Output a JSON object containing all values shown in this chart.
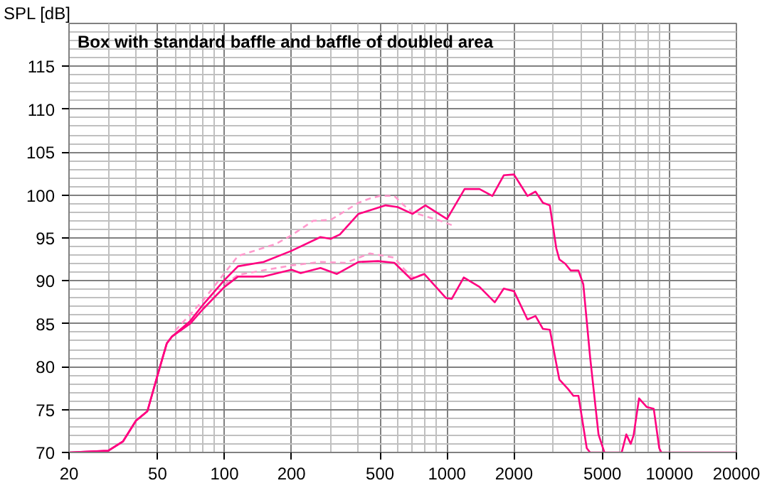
{
  "chart_data": {
    "type": "line",
    "title": "Box with standard baffle and baffle of doubled area",
    "ylabel": "SPL [dB]",
    "log": "x",
    "grid": true,
    "xlim": [
      20,
      20000
    ],
    "ylim": [
      70,
      120
    ],
    "xticks": [
      20,
      50,
      100,
      200,
      500,
      1000,
      2000,
      5000,
      10000,
      20000
    ],
    "yticks": [
      70,
      75,
      80,
      85,
      90,
      95,
      100,
      105,
      110,
      115
    ],
    "series": [
      {
        "color": "#ff99cc",
        "line_style": "dashed",
        "x": [
          60,
          80,
          100,
          115,
          170,
          200,
          250,
          300,
          400,
          450,
          500,
          580,
          640,
          700,
          930,
          1050
        ],
        "values": [
          84.2,
          87.7,
          90.9,
          92.9,
          94.3,
          95.3,
          97.0,
          97.1,
          99.1,
          99.6,
          99.9,
          99.9,
          98.8,
          98.0,
          97.0,
          96.5
        ]
      },
      {
        "color": "#ff99cc",
        "line_style": "dashed",
        "x": [
          100,
          115,
          200,
          270,
          350,
          450,
          500,
          580,
          640,
          700,
          800
        ],
        "values": [
          89.6,
          90.7,
          91.8,
          92.2,
          92.1,
          93.2,
          93.0,
          92.7,
          91.4,
          90.4,
          90.8
        ]
      },
      {
        "color": "#ff0080",
        "line_style": "solid",
        "x": [
          20,
          30,
          35,
          40,
          45,
          50,
          55,
          58,
          70,
          80,
          100,
          115,
          150,
          200,
          270,
          300,
          330,
          400,
          530,
          600,
          700,
          800,
          1000,
          1200,
          1400,
          1600,
          1800,
          2000,
          2300,
          2500,
          2700,
          2900,
          3100,
          3200,
          3400,
          3600,
          3900,
          4100,
          4400,
          4800,
          5100
        ],
        "values": [
          70,
          70.2,
          71.3,
          73.7,
          74.8,
          79.0,
          82.7,
          83.5,
          85.3,
          87.2,
          90.1,
          91.7,
          92.2,
          93.5,
          95.1,
          94.9,
          95.4,
          97.8,
          98.8,
          98.6,
          97.8,
          98.8,
          97.2,
          100.7,
          100.7,
          99.9,
          102.3,
          102.4,
          99.9,
          100.4,
          99.1,
          98.8,
          93.8,
          92.5,
          92.0,
          91.2,
          91.2,
          89.6,
          81.1,
          72.1,
          70
        ]
      },
      {
        "color": "#ff0080",
        "line_style": "solid",
        "x": [
          20,
          30,
          35,
          40,
          45,
          50,
          55,
          58,
          70,
          80,
          100,
          115,
          150,
          200,
          220,
          270,
          320,
          400,
          490,
          580,
          690,
          790,
          990,
          1050,
          1190,
          1400,
          1640,
          1800,
          2000,
          2300,
          2500,
          2700,
          2900,
          3200,
          3500,
          3700,
          3900,
          4250,
          4400,
          6100,
          6400,
          6700,
          6900,
          7300,
          7900,
          8500,
          9000,
          9200,
          20000
        ],
        "values": [
          70,
          70.2,
          71.3,
          73.7,
          74.8,
          79.0,
          82.7,
          83.5,
          85.0,
          86.7,
          89.3,
          90.5,
          90.5,
          91.3,
          90.9,
          91.5,
          90.8,
          92.2,
          92.3,
          92.1,
          90.2,
          90.8,
          88.0,
          87.9,
          90.4,
          89.3,
          87.5,
          89.1,
          88.8,
          85.5,
          85.9,
          84.4,
          84.3,
          78.5,
          77.4,
          76.6,
          76.6,
          70.5,
          70,
          70,
          72.1,
          71.0,
          72.0,
          76.3,
          75.3,
          75.1,
          70.5,
          70,
          70
        ]
      }
    ]
  }
}
